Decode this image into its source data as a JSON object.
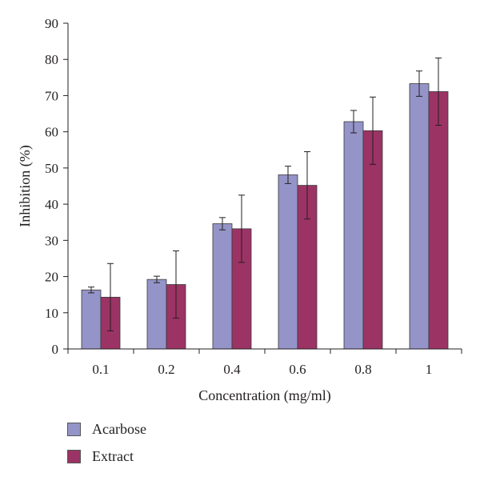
{
  "chart_data": {
    "type": "bar",
    "title": "",
    "xlabel": "Concentration (mg/ml)",
    "ylabel": "Inhibition (%)",
    "categories": [
      "0.1",
      "0.2",
      "0.4",
      "0.6",
      "0.8",
      "1"
    ],
    "ylim": [
      0,
      90
    ],
    "yticks": [
      0,
      10,
      20,
      30,
      40,
      50,
      60,
      70,
      80,
      90
    ],
    "grid": false,
    "legend_position": "bottom-left",
    "series": [
      {
        "name": "Acarbose",
        "color": "#9494c8",
        "values": [
          16.3,
          19.2,
          34.6,
          48.1,
          62.8,
          73.3
        ],
        "errors": [
          0.8,
          0.9,
          1.7,
          2.4,
          3.1,
          3.5
        ]
      },
      {
        "name": "Extract",
        "color": "#9c3365",
        "values": [
          14.3,
          17.8,
          33.2,
          45.2,
          60.3,
          71.1
        ],
        "errors": [
          9.3,
          9.3,
          9.3,
          9.3,
          9.3,
          9.3
        ]
      }
    ]
  }
}
